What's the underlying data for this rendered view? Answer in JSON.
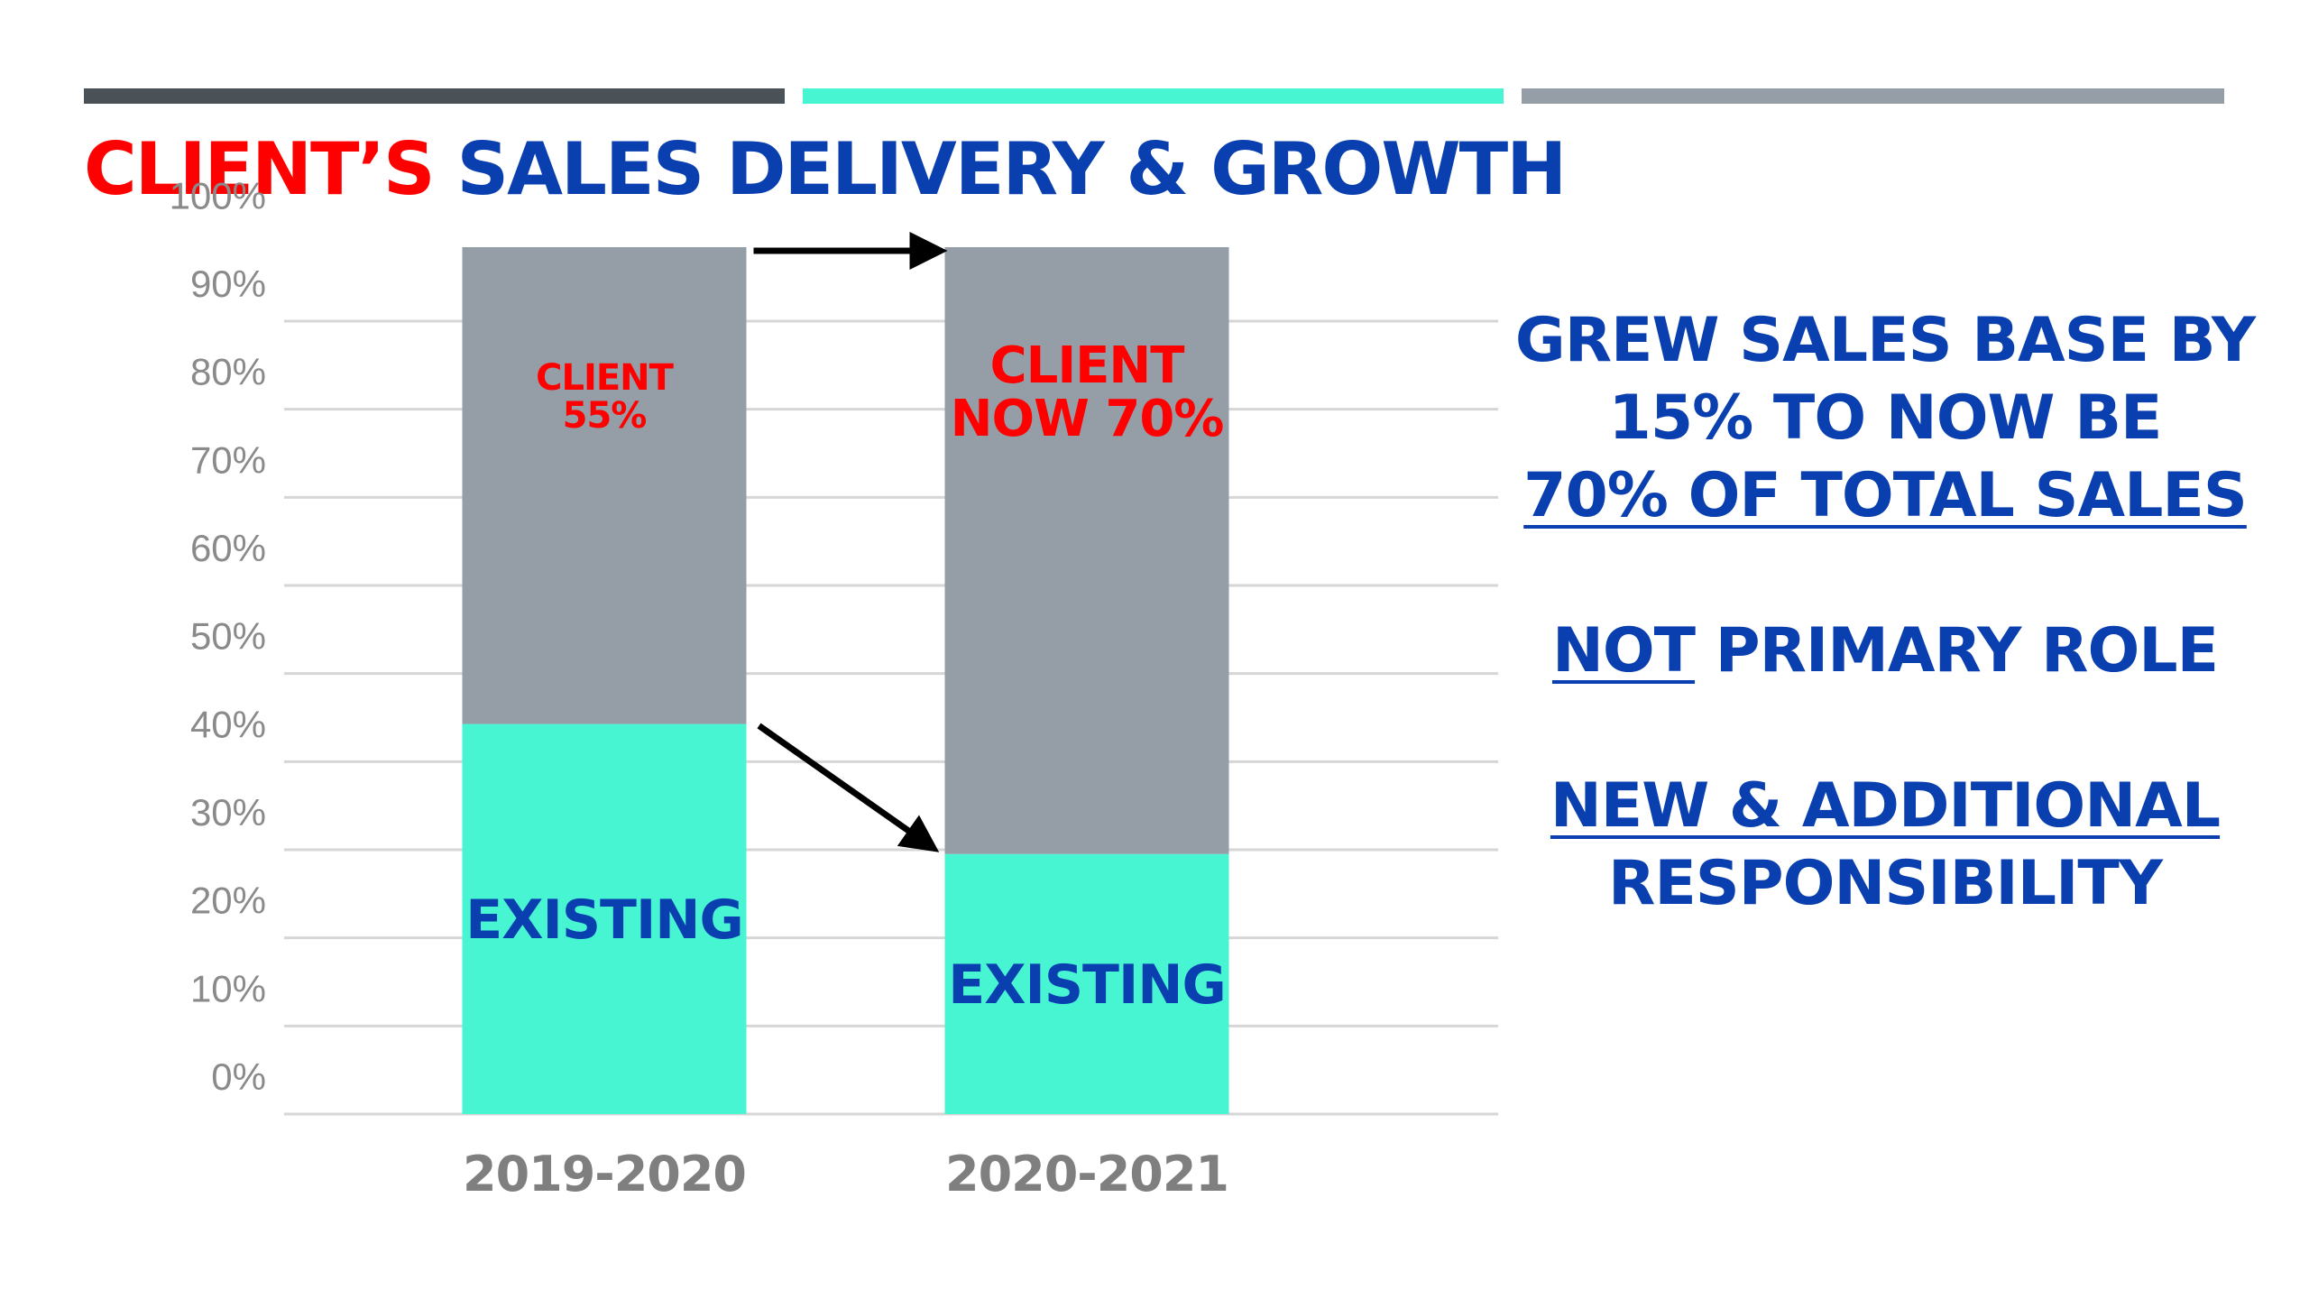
{
  "decor": {
    "top_bars": [
      {
        "color": "#4a5257"
      },
      {
        "color": "#48f5d3"
      },
      {
        "color": "#959ea6"
      }
    ]
  },
  "title": {
    "part1": "CLIENT’S",
    "part2": "SALES DELIVERY & GROWTH",
    "color1": "#ff0000",
    "color2": "#0a3fb0"
  },
  "chart_data": {
    "type": "bar",
    "stacked": true,
    "categories": [
      "2019-2020",
      "2020-2021"
    ],
    "series": [
      {
        "name": "EXISTING",
        "values": [
          45,
          30
        ],
        "color": "#48f5d3",
        "labels": [
          "EXISTING",
          "EXISTING"
        ],
        "label_color": "#0a3fb0"
      },
      {
        "name": "CLIENT",
        "values": [
          55,
          70
        ],
        "color": "#959ea6",
        "labels": [
          [
            "CLIENT",
            "55%"
          ],
          [
            "CLIENT",
            "NOW 70%"
          ]
        ],
        "label_color": "#ff0000"
      }
    ],
    "yticks": [
      "0%",
      "10%",
      "20%",
      "30%",
      "40%",
      "50%",
      "60%",
      "70%",
      "80%",
      "90%",
      "100%"
    ],
    "ylim": [
      0,
      100
    ],
    "grid": true,
    "legend": "none",
    "annotations": [
      {
        "type": "arrow",
        "from": "top of 2019-2020 bar",
        "to": "top of 2020-2021 bar"
      },
      {
        "type": "arrow",
        "from": "top of EXISTING 2019-2020",
        "to": "top of EXISTING 2020-2021"
      }
    ]
  },
  "right_text": {
    "line1": "GREW SALES BASE BY",
    "line2": "15% TO NOW BE",
    "line3": "70% OF TOTAL SALES",
    "not_word": "NOT",
    "primary_rest": " PRIMARY ROLE",
    "line5": "NEW & ADDITIONAL",
    "line6": "RESPONSIBILITY"
  }
}
